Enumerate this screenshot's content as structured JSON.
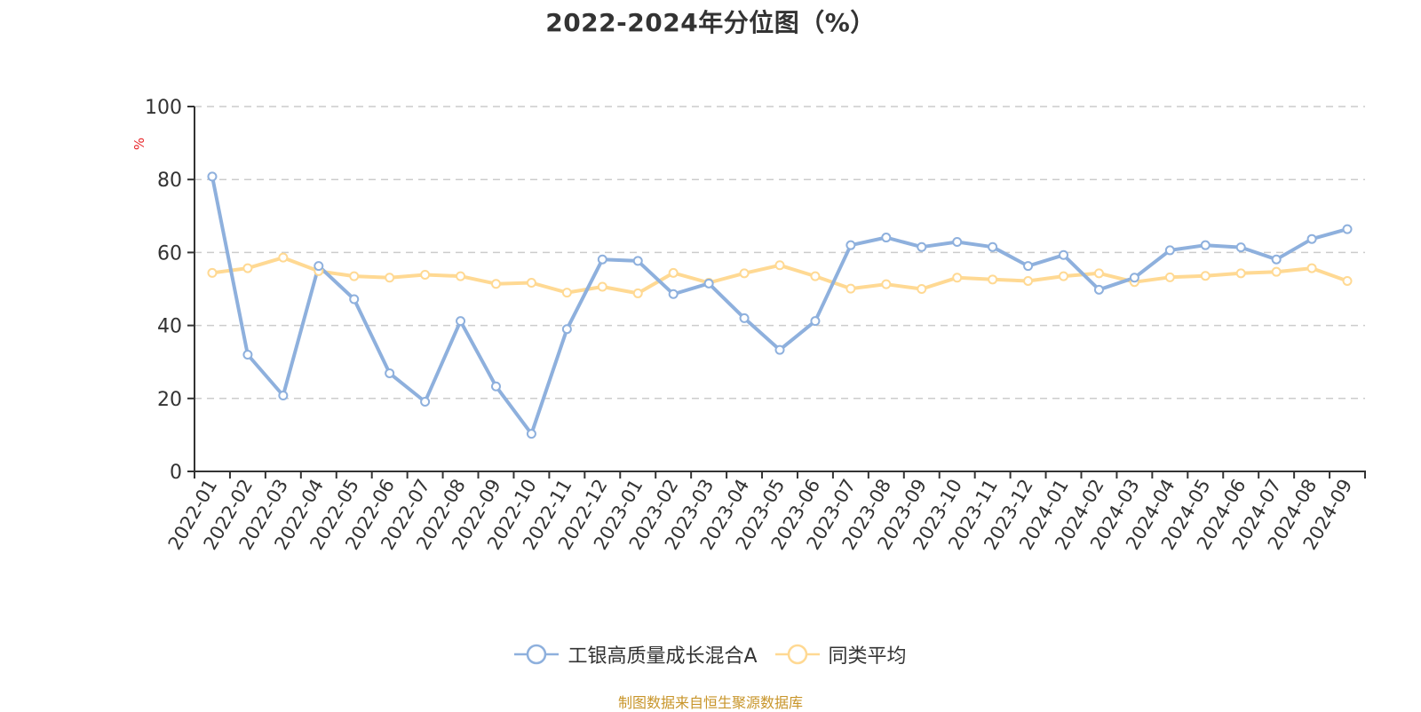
{
  "title": "2022-2024年分位图（%）",
  "footer": "制图数据来自恒生聚源数据库",
  "legend": [
    {
      "label": "工银高质量成长混合A",
      "color": "#8eb0dd",
      "icon": "circle-line-icon"
    },
    {
      "label": "同类平均",
      "color": "#ffd993",
      "icon": "circle-line-icon"
    }
  ],
  "chart_data": {
    "type": "line",
    "title": "2022-2024年分位图（%）",
    "xlabel": "",
    "ylabel": "%",
    "ylabel_color": "#e8262a",
    "ylim": [
      0,
      100
    ],
    "yticks": [
      0,
      20,
      40,
      60,
      80,
      100
    ],
    "grid": {
      "y": true,
      "style": "dashed",
      "color": "#cccccc"
    },
    "legend_position": "bottom",
    "categories": [
      "2022-01",
      "2022-02",
      "2022-03",
      "2022-04",
      "2022-05",
      "2022-06",
      "2022-07",
      "2022-08",
      "2022-09",
      "2022-10",
      "2022-11",
      "2022-12",
      "2023-01",
      "2023-02",
      "2023-03",
      "2023-04",
      "2023-05",
      "2023-06",
      "2023-07",
      "2023-08",
      "2023-09",
      "2023-10",
      "2023-11",
      "2023-12",
      "2024-01",
      "2024-02",
      "2024-03",
      "2024-04",
      "2024-05",
      "2024-06",
      "2024-07",
      "2024-08",
      "2024-09"
    ],
    "series": [
      {
        "name": "工银高质量成长混合A",
        "color": "#8eb0dd",
        "values": [
          80.8,
          32.0,
          20.8,
          56.3,
          47.2,
          26.9,
          19.1,
          41.2,
          23.3,
          10.3,
          39.0,
          58.1,
          57.7,
          48.6,
          51.5,
          42.0,
          33.3,
          41.2,
          62.0,
          64.1,
          61.5,
          62.9,
          61.5,
          56.3,
          59.3,
          49.8,
          53.1,
          60.6,
          62.0,
          61.4,
          58.1,
          63.7,
          66.4
        ]
      },
      {
        "name": "同类平均",
        "color": "#ffd993",
        "values": [
          54.4,
          55.7,
          58.6,
          54.9,
          53.5,
          53.1,
          53.9,
          53.5,
          51.4,
          51.7,
          49.0,
          50.6,
          48.8,
          54.4,
          51.7,
          54.3,
          56.5,
          53.5,
          50.1,
          51.3,
          50.0,
          53.1,
          52.6,
          52.2,
          53.5,
          54.3,
          51.9,
          53.2,
          53.6,
          54.3,
          54.7,
          55.7,
          52.2
        ]
      }
    ]
  }
}
